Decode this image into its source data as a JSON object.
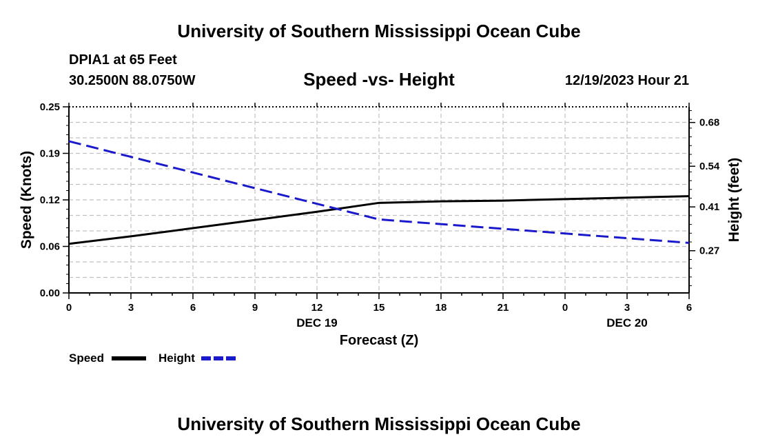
{
  "header": {
    "title_top": "University of Southern Mississippi Ocean Cube",
    "station": "DPIA1 at 65 Feet",
    "coords": "30.2500N  88.0750W",
    "subtitle": "Speed -vs- Height",
    "datetime": "12/19/2023 Hour 21",
    "title_bottom": "University of Southern Mississippi Ocean Cube"
  },
  "legend": {
    "speed_label": "Speed",
    "height_label": "Height"
  },
  "colors": {
    "speed": "#000000",
    "height": "#1a1acc",
    "grid": "#c0c0c0"
  },
  "chart_data": {
    "type": "line",
    "x": [
      0,
      3,
      6,
      9,
      12,
      15,
      18,
      21,
      24,
      27,
      30
    ],
    "x_tick_labels": [
      "0",
      "3",
      "6",
      "9",
      "12",
      "15",
      "18",
      "21",
      "0",
      "3",
      "6"
    ],
    "date_labels": [
      {
        "x": 12,
        "label": "DEC 19"
      },
      {
        "x": 27,
        "label": "DEC 20"
      }
    ],
    "xlabel": "Forecast (Z)",
    "xlim": [
      0,
      30
    ],
    "series": [
      {
        "name": "Speed",
        "axis": "left",
        "style": "solid",
        "values": [
          0.066,
          0.076,
          0.087,
          0.098,
          0.109,
          0.121,
          0.123,
          0.124,
          0.126,
          0.128,
          0.13
        ]
      },
      {
        "name": "Height",
        "axis": "right",
        "style": "dashed",
        "values": [
          0.62,
          0.57,
          0.52,
          0.47,
          0.42,
          0.37,
          0.355,
          0.34,
          0.325,
          0.31,
          0.295
        ]
      }
    ],
    "left_axis": {
      "label": "Speed (Knots)",
      "ylim": [
        0,
        0.25
      ],
      "ticks": [
        0.0,
        0.0625,
        0.125,
        0.1875,
        0.25
      ],
      "tick_labels": [
        "0.00",
        "0.06",
        "0.12",
        "0.19",
        "0.25"
      ]
    },
    "right_axis": {
      "label": "Height (feet)",
      "ylim": [
        0.135,
        0.73
      ],
      "ticks": [
        0.27,
        0.41,
        0.54,
        0.68
      ],
      "tick_labels": [
        "0.27",
        "0.41",
        "0.54",
        "0.68"
      ]
    },
    "grid": true
  }
}
